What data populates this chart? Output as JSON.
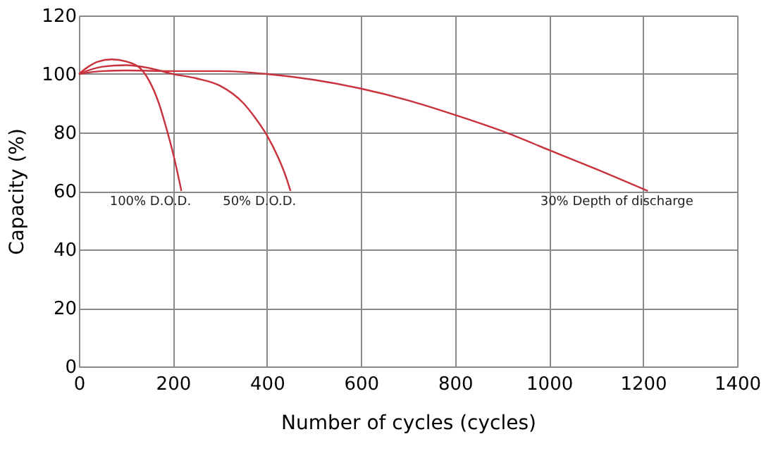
{
  "chart_data": {
    "type": "line",
    "xlabel": "Number of cycles (cycles)",
    "ylabel": "Capacity (%)",
    "xlim": [
      0,
      1400
    ],
    "xticks": [
      0,
      200,
      400,
      600,
      800,
      1000,
      1200,
      1400
    ],
    "ylim": [
      0,
      120
    ],
    "yticks": [
      0,
      20,
      40,
      60,
      80,
      100,
      120
    ],
    "grid": true,
    "marker": "none",
    "line_style": "solid",
    "series": [
      {
        "color": "#c8323c",
        "x": [
          0,
          20,
          40,
          70,
          100,
          130,
          150,
          170,
          185,
          200,
          210,
          218
        ],
        "values": [
          100,
          102.5,
          104.2,
          105,
          104.3,
          102,
          97.5,
          90,
          82,
          73,
          66,
          60
        ]
      },
      {
        "color": "#c8323c",
        "x": [
          0,
          50,
          100,
          150,
          200,
          250,
          300,
          350,
          375,
          400,
          425,
          440,
          450
        ],
        "values": [
          100,
          102.5,
          103,
          102,
          100,
          98.5,
          96,
          90,
          85,
          79,
          71,
          65,
          60
        ]
      },
      {
        "color": "#c8323c",
        "x": [
          0,
          50,
          100,
          200,
          300,
          400,
          500,
          600,
          700,
          800,
          900,
          1000,
          1100,
          1210
        ],
        "values": [
          100,
          101,
          101.2,
          101,
          101,
          100,
          98,
          95,
          91,
          86,
          80.5,
          74,
          67.5,
          60
        ]
      }
    ],
    "annotations": [
      {
        "text": "100% D.O.D.",
        "x": 218,
        "y": 60
      },
      {
        "text": "50% D.O.D.",
        "x": 450,
        "y": 60
      },
      {
        "text": "30% Depth of discharge",
        "x": 1210,
        "y": 60
      }
    ]
  }
}
